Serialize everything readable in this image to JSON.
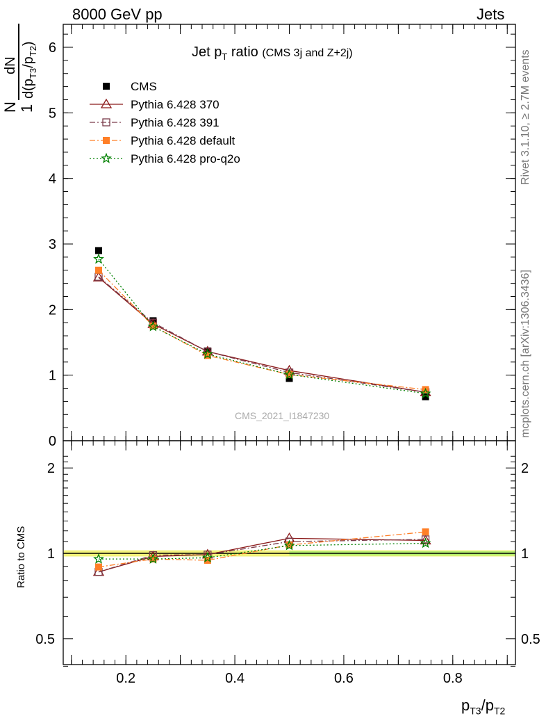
{
  "header": {
    "left": "8000 GeV pp",
    "right": "Jets"
  },
  "side_labels": {
    "rivet": "Rivet 3.1.10, ≥ 2.7M events",
    "mcplots": "mcplots.cern.ch [arXiv:1306.3436]"
  },
  "title": {
    "main": "Jet p",
    "sub": "T",
    "rest": " ratio",
    "note": "(CMS 3j and Z+2j)"
  },
  "watermark": "CMS_2021_I1847230",
  "ylabel_main": {
    "one": "1",
    "N": "N",
    "dN": "dN",
    "den_d": "d(p",
    "den_s1": "T3",
    "den_slash": "/p",
    "den_s2": "T2",
    "den_close": ")"
  },
  "ylabel_ratio": "Ratio to CMS",
  "xlabel": {
    "p1": "p",
    "s1": "T3",
    "slash": "/p",
    "s2": "T2"
  },
  "chart_data": [
    {
      "type": "line",
      "panel": "main",
      "x": [
        0.15,
        0.25,
        0.35,
        0.5,
        0.75
      ],
      "xlim": [
        0.085,
        0.915
      ],
      "ylim": [
        0,
        6.35
      ],
      "y_ticks": [
        "0",
        "1",
        "2",
        "3",
        "4",
        "5",
        "6"
      ],
      "series": [
        {
          "name": "CMS",
          "color": "#000000",
          "marker": "filled-square",
          "values": [
            2.9,
            1.83,
            1.37,
            0.95,
            0.67
          ]
        },
        {
          "name": "Pythia 6.428 370",
          "color": "#8b1a1a",
          "marker": "open-triangle",
          "line": "solid",
          "values": [
            2.49,
            1.78,
            1.36,
            1.07,
            0.74
          ]
        },
        {
          "name": "Pythia 6.428 391",
          "color": "#7a3b4a",
          "marker": "open-square",
          "line": "dashdot",
          "values": [
            2.5,
            1.8,
            1.36,
            1.04,
            0.74
          ]
        },
        {
          "name": "Pythia 6.428 default",
          "color": "#ff7f27",
          "marker": "filled-square",
          "line": "dashdot",
          "values": [
            2.6,
            1.75,
            1.3,
            1.01,
            0.78
          ]
        },
        {
          "name": "Pythia 6.428 pro-q2o",
          "color": "#008000",
          "marker": "star",
          "line": "dotted",
          "values": [
            2.77,
            1.74,
            1.32,
            1.01,
            0.72
          ]
        }
      ]
    },
    {
      "type": "line",
      "panel": "ratio",
      "x": [
        0.15,
        0.25,
        0.35,
        0.5,
        0.75
      ],
      "xlim": [
        0.085,
        0.915
      ],
      "ylim": [
        0.35,
        2.3
      ],
      "x_ticks": [
        "0.2",
        "0.4",
        "0.6",
        "0.8"
      ],
      "y_ticks": [
        "0.5",
        "1",
        "2"
      ],
      "series": [
        {
          "name": "Pythia 6.428 370",
          "color": "#8b1a1a",
          "values": [
            0.86,
            0.975,
            0.99,
            1.13,
            1.11
          ]
        },
        {
          "name": "Pythia 6.428 391",
          "color": "#7a3b4a",
          "values": [
            0.86,
            0.985,
            0.99,
            1.1,
            1.12
          ]
        },
        {
          "name": "Pythia 6.428 default",
          "color": "#ff7f27",
          "values": [
            0.895,
            0.955,
            0.945,
            1.07,
            1.19
          ]
        },
        {
          "name": "Pythia 6.428 pro-q2o",
          "color": "#008000",
          "values": [
            0.955,
            0.955,
            0.965,
            1.065,
            1.085
          ]
        }
      ]
    }
  ]
}
